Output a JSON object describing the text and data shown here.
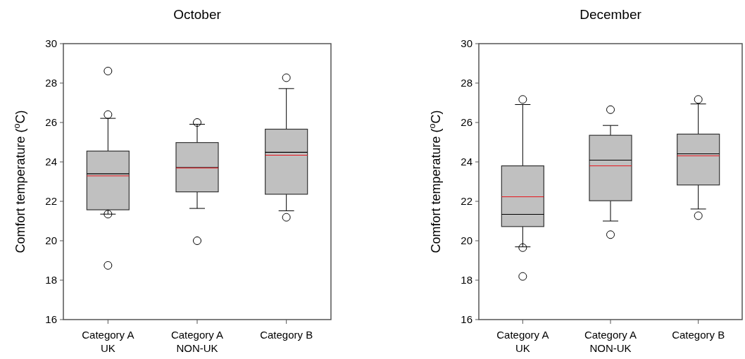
{
  "chart_data": [
    {
      "type": "box",
      "title": "October",
      "ylabel": "Comfort temperature ($^{o}$C)",
      "categories": [
        "Category A\nUK",
        "Category A\nNON-UK",
        "Category B"
      ],
      "ylim": [
        16,
        30
      ],
      "yticks": [
        16,
        18,
        20,
        22,
        24,
        26,
        28,
        30
      ],
      "series": [
        {
          "color": "#c0c0c0",
          "boxes": [
            {
              "low": 21.35,
              "q1": 21.57,
              "median": 23.4,
              "q3": 24.55,
              "high": 26.21,
              "mean": 23.29,
              "outliers": [
                28.61,
                26.4,
                21.35,
                18.75
              ]
            },
            {
              "low": 21.64,
              "q1": 22.48,
              "median": 23.71,
              "q3": 24.98,
              "high": 25.91,
              "mean": 23.69,
              "outliers": [
                26.0,
                20.0
              ]
            },
            {
              "low": 21.52,
              "q1": 22.36,
              "median": 24.49,
              "q3": 25.66,
              "high": 27.72,
              "mean": 24.34,
              "outliers": [
                28.27,
                21.19
              ]
            }
          ]
        }
      ]
    },
    {
      "type": "box",
      "title": "December",
      "ylabel": "Comfort temperature ($^{o}$C)",
      "categories": [
        "Category A\nUK",
        "Category A\nNON-UK",
        "Category B"
      ],
      "ylim": [
        16,
        30
      ],
      "yticks": [
        16,
        18,
        20,
        22,
        24,
        26,
        28,
        30
      ],
      "series": [
        {
          "color": "#c0c0c0",
          "boxes": [
            {
              "low": 19.69,
              "q1": 20.72,
              "median": 21.34,
              "q3": 23.8,
              "high": 26.91,
              "mean": 22.23,
              "outliers": [
                27.17,
                19.65,
                18.19
              ]
            },
            {
              "low": 21.0,
              "q1": 22.03,
              "median": 24.09,
              "q3": 25.35,
              "high": 25.85,
              "mean": 23.8,
              "outliers": [
                26.65,
                20.31
              ]
            },
            {
              "low": 21.61,
              "q1": 22.83,
              "median": 24.41,
              "q3": 25.41,
              "high": 26.94,
              "mean": 24.31,
              "outliers": [
                27.17,
                21.27
              ]
            }
          ]
        }
      ]
    }
  ]
}
